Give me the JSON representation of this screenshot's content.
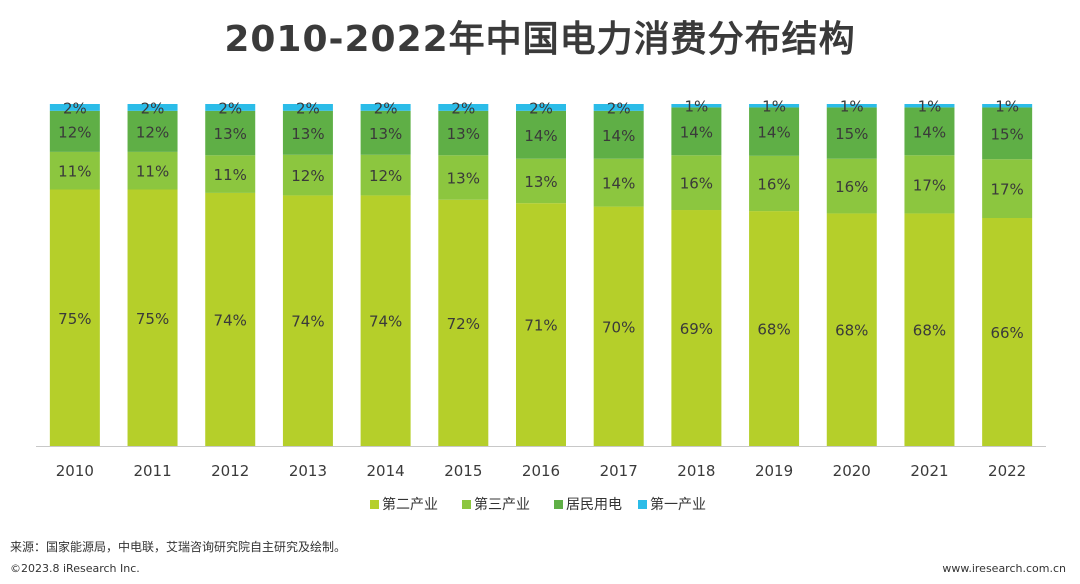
{
  "chart_data": {
    "type": "bar",
    "stacked": true,
    "title": "2010-2022年中国电力消费分布结构",
    "categories": [
      "2010",
      "2011",
      "2012",
      "2013",
      "2014",
      "2015",
      "2016",
      "2017",
      "2018",
      "2019",
      "2020",
      "2021",
      "2022"
    ],
    "series": [
      {
        "name": "第二产业",
        "color": "#b5cf2a",
        "values": [
          75,
          75,
          74,
          74,
          74,
          72,
          71,
          70,
          69,
          68,
          68,
          68,
          66
        ],
        "labels": [
          "75%",
          "75%",
          "74%",
          "74%",
          "74%",
          "72%",
          "71%",
          "70%",
          "69%",
          "68%",
          "68%",
          "68%",
          "66%"
        ]
      },
      {
        "name": "第三产业",
        "color": "#8cc63f",
        "values": [
          11,
          11,
          11,
          12,
          12,
          13,
          13,
          14,
          16,
          16,
          16,
          17,
          17
        ],
        "labels": [
          "11%",
          "11%",
          "11%",
          "12%",
          "12%",
          "13%",
          "13%",
          "14%",
          "16%",
          "16%",
          "16%",
          "17%",
          "17%"
        ]
      },
      {
        "name": "居民用电",
        "color": "#5faf46",
        "values": [
          12,
          12,
          13,
          13,
          13,
          13,
          14,
          14,
          14,
          14,
          15,
          14,
          15
        ],
        "labels": [
          "12%",
          "12%",
          "13%",
          "13%",
          "13%",
          "13%",
          "14%",
          "14%",
          "14%",
          "14%",
          "15%",
          "14%",
          "15%"
        ]
      },
      {
        "name": "第一产业",
        "color": "#2bbce8",
        "values": [
          2,
          2,
          2,
          2,
          2,
          2,
          2,
          2,
          1,
          1,
          1,
          1,
          1
        ],
        "labels": [
          "2%",
          "2%",
          "2%",
          "2%",
          "2%",
          "2%",
          "2%",
          "2%",
          "1%",
          "1%",
          "1%",
          "1%",
          "1%"
        ]
      }
    ],
    "ylim": [
      0,
      100
    ],
    "legend": "bottom"
  },
  "footer": {
    "source": "来源：国家能源局，中电联，艾瑞咨询研究院自主研究及绘制。",
    "copyright": "©2023.8 iResearch Inc.",
    "website": "www.iresearch.com.cn"
  }
}
